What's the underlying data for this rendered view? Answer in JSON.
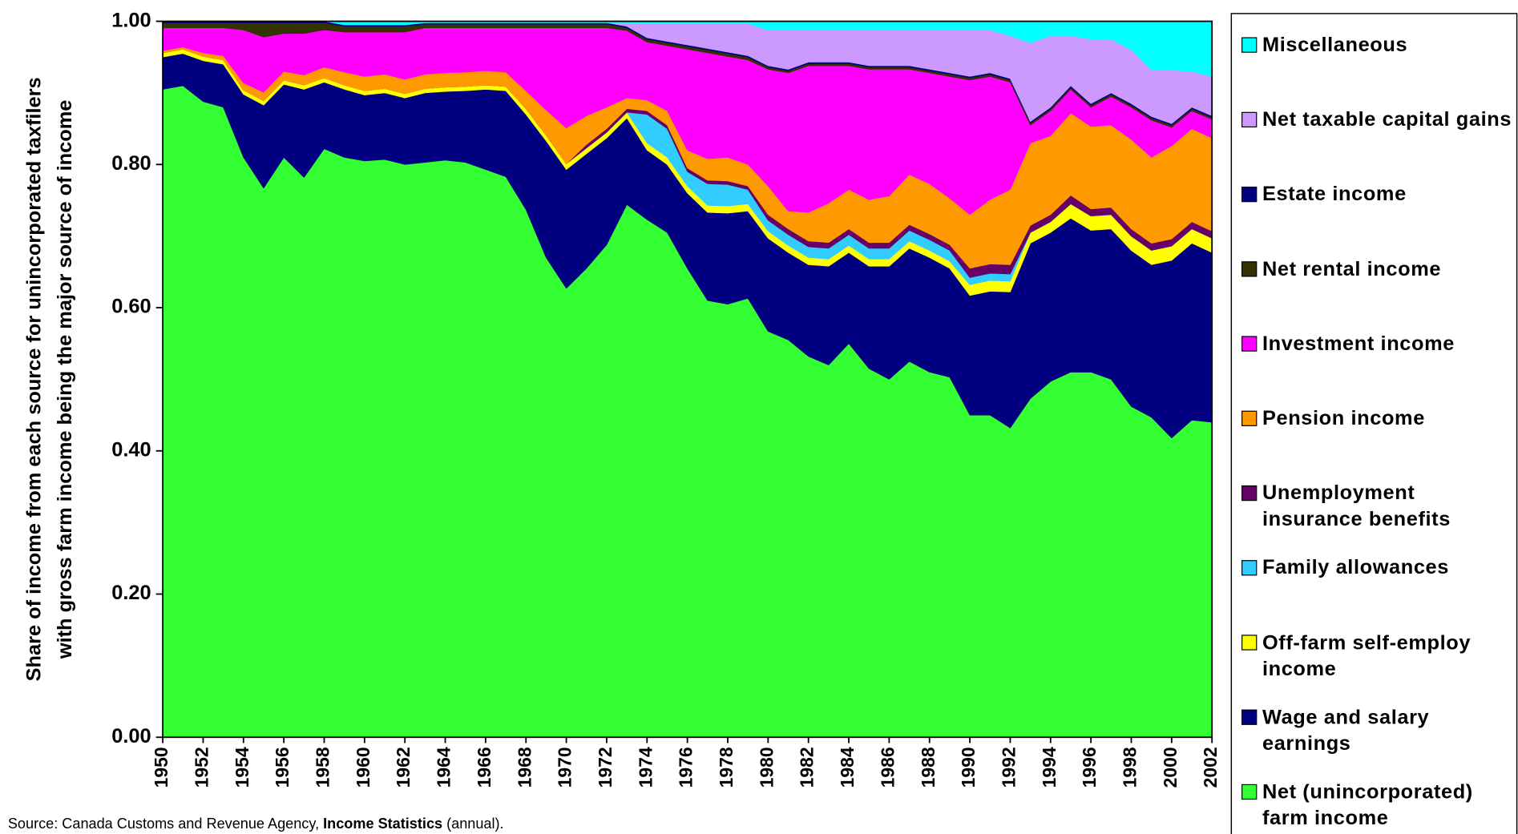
{
  "chart_data": {
    "type": "stacked_area",
    "ylabel": [
      "Share of income from each source for unincorporated taxfilers",
      "with gross farm income being the major source of income"
    ],
    "source_parts": [
      "Source:  Canada Customs and Revenue Agency, ",
      "Income Statistics",
      " (annual)."
    ],
    "x": [
      1950,
      1951,
      1952,
      1953,
      1954,
      1955,
      1956,
      1957,
      1958,
      1959,
      1960,
      1961,
      1962,
      1963,
      1964,
      1965,
      1966,
      1967,
      1968,
      1969,
      1970,
      1971,
      1972,
      1973,
      1974,
      1975,
      1976,
      1977,
      1978,
      1979,
      1980,
      1981,
      1982,
      1983,
      1984,
      1985,
      1986,
      1987,
      1988,
      1989,
      1990,
      1991,
      1992,
      1993,
      1994,
      1995,
      1996,
      1997,
      1998,
      1999,
      2000,
      2001,
      2002
    ],
    "xlim": [
      1950,
      2002
    ],
    "xticks": [
      1950,
      1952,
      1954,
      1956,
      1958,
      1960,
      1962,
      1964,
      1966,
      1968,
      1970,
      1972,
      1974,
      1976,
      1978,
      1980,
      1982,
      1984,
      1986,
      1988,
      1990,
      1992,
      1994,
      1996,
      1998,
      2000,
      2002
    ],
    "ylim": [
      0,
      1
    ],
    "yticks": [
      {
        "value": 0,
        "label": "0.00"
      },
      {
        "value": 0.2,
        "label": "0.20"
      },
      {
        "value": 0.4,
        "label": "0.40"
      },
      {
        "value": 0.6,
        "label": "0.60"
      },
      {
        "value": 0.8,
        "label": "0.80"
      },
      {
        "value": 1,
        "label": "1.00"
      }
    ],
    "legend": "right",
    "series": [
      {
        "name": "Net (unincorporated) farm income",
        "color": "#33ff33",
        "values": [
          0.905,
          0.91,
          0.888,
          0.88,
          0.81,
          0.767,
          0.81,
          0.782,
          0.822,
          0.81,
          0.805,
          0.807,
          0.8,
          0.803,
          0.806,
          0.803,
          0.793,
          0.783,
          0.737,
          0.67,
          0.627,
          0.655,
          0.688,
          0.744,
          0.723,
          0.705,
          0.655,
          0.61,
          0.605,
          0.613,
          0.567,
          0.555,
          0.532,
          0.52,
          0.55,
          0.515,
          0.5,
          0.525,
          0.51,
          0.503,
          0.45,
          0.45,
          0.432,
          0.473,
          0.497,
          0.51,
          0.51,
          0.5,
          0.462,
          0.447,
          0.418,
          0.443,
          0.44
        ]
      },
      {
        "name": "Wage and salary earnings",
        "color": "#000080",
        "values": [
          0.045,
          0.045,
          0.057,
          0.06,
          0.088,
          0.116,
          0.102,
          0.123,
          0.093,
          0.095,
          0.092,
          0.093,
          0.093,
          0.097,
          0.096,
          0.1,
          0.112,
          0.12,
          0.133,
          0.163,
          0.166,
          0.16,
          0.149,
          0.121,
          0.097,
          0.095,
          0.105,
          0.123,
          0.127,
          0.122,
          0.13,
          0.122,
          0.128,
          0.138,
          0.127,
          0.143,
          0.158,
          0.158,
          0.16,
          0.152,
          0.167,
          0.173,
          0.19,
          0.217,
          0.208,
          0.215,
          0.198,
          0.21,
          0.218,
          0.213,
          0.248,
          0.247,
          0.237
        ]
      },
      {
        "name": "Off-farm self-employ income",
        "color": "#ffff00",
        "values": [
          0.006,
          0.006,
          0.006,
          0.006,
          0.006,
          0.006,
          0.006,
          0.006,
          0.006,
          0.006,
          0.006,
          0.006,
          0.006,
          0.006,
          0.006,
          0.006,
          0.006,
          0.006,
          0.008,
          0.008,
          0.008,
          0.008,
          0.008,
          0.008,
          0.01,
          0.01,
          0.01,
          0.01,
          0.01,
          0.01,
          0.01,
          0.01,
          0.01,
          0.01,
          0.01,
          0.01,
          0.01,
          0.01,
          0.01,
          0.01,
          0.015,
          0.015,
          0.015,
          0.015,
          0.015,
          0.02,
          0.02,
          0.02,
          0.02,
          0.02,
          0.02,
          0.02,
          0.02
        ]
      },
      {
        "name": "Family allowances",
        "color": "#33ccff",
        "values": [
          0,
          0,
          0,
          0,
          0,
          0,
          0,
          0,
          0,
          0,
          0,
          0,
          0,
          0,
          0,
          0,
          0,
          0,
          0,
          0,
          0,
          0,
          0,
          0,
          0.04,
          0.04,
          0.02,
          0.03,
          0.03,
          0.02,
          0.015,
          0.015,
          0.015,
          0.015,
          0.015,
          0.015,
          0.015,
          0.015,
          0.015,
          0.015,
          0.01,
          0.01,
          0.01,
          0,
          0,
          0,
          0,
          0,
          0,
          0,
          0,
          0,
          0
        ]
      },
      {
        "name": "Unemployment insurance benefits",
        "color": "#660066",
        "values": [
          0,
          0,
          0,
          0,
          0,
          0,
          0,
          0,
          0,
          0,
          0,
          0,
          0,
          0,
          0,
          0,
          0,
          0,
          0,
          0,
          0,
          0.005,
          0.005,
          0.005,
          0.005,
          0.005,
          0.005,
          0.005,
          0.005,
          0.005,
          0.008,
          0.008,
          0.008,
          0.008,
          0.008,
          0.008,
          0.008,
          0.008,
          0.008,
          0.008,
          0.013,
          0.013,
          0.013,
          0.01,
          0.01,
          0.012,
          0.01,
          0.01,
          0.01,
          0.01,
          0.01,
          0.01,
          0.01
        ]
      },
      {
        "name": "Pension income",
        "color": "#ff9900",
        "values": [
          0.003,
          0.003,
          0.005,
          0.006,
          0.01,
          0.012,
          0.012,
          0.014,
          0.015,
          0.018,
          0.02,
          0.02,
          0.02,
          0.02,
          0.02,
          0.02,
          0.02,
          0.02,
          0.025,
          0.035,
          0.05,
          0.04,
          0.03,
          0.015,
          0.015,
          0.02,
          0.025,
          0.03,
          0.033,
          0.03,
          0.04,
          0.025,
          0.04,
          0.055,
          0.055,
          0.06,
          0.065,
          0.07,
          0.07,
          0.065,
          0.075,
          0.09,
          0.105,
          0.115,
          0.11,
          0.115,
          0.115,
          0.115,
          0.125,
          0.12,
          0.13,
          0.13,
          0.13
        ]
      },
      {
        "name": "Investment income",
        "color": "#ff00ff",
        "values": [
          0.032,
          0.027,
          0.035,
          0.039,
          0.074,
          0.077,
          0.053,
          0.058,
          0.052,
          0.056,
          0.062,
          0.059,
          0.066,
          0.065,
          0.063,
          0.062,
          0.06,
          0.062,
          0.088,
          0.115,
          0.14,
          0.123,
          0.111,
          0.094,
          0.081,
          0.091,
          0.141,
          0.148,
          0.141,
          0.146,
          0.163,
          0.193,
          0.205,
          0.192,
          0.173,
          0.182,
          0.177,
          0.147,
          0.155,
          0.17,
          0.188,
          0.172,
          0.15,
          0.025,
          0.035,
          0.033,
          0.027,
          0.04,
          0.045,
          0.052,
          0.026,
          0.025,
          0.026
        ]
      },
      {
        "name": "Net rental income",
        "color": "#333300",
        "values": [
          0.007,
          0.007,
          0.007,
          0.007,
          0.01,
          0.02,
          0.015,
          0.015,
          0.01,
          0.008,
          0.008,
          0.008,
          0.008,
          0.005,
          0.005,
          0.005,
          0.005,
          0.005,
          0.005,
          0.005,
          0.005,
          0.005,
          0.005,
          0.004,
          0.004,
          0.004,
          0.004,
          0.004,
          0.004,
          0.004,
          0.003,
          0.003,
          0.003,
          0.003,
          0.003,
          0.003,
          0.003,
          0.003,
          0.003,
          0.003,
          0.003,
          0.003,
          0.003,
          0.003,
          0.003,
          0.003,
          0.003,
          0.003,
          0.003,
          0.003,
          0.003,
          0.003,
          0.003
        ]
      },
      {
        "name": "Estate income",
        "color": "#000080",
        "values": [
          0.002,
          0.002,
          0.002,
          0.002,
          0.002,
          0.002,
          0.002,
          0.002,
          0.002,
          0.002,
          0.002,
          0.002,
          0.002,
          0.002,
          0.002,
          0.002,
          0.002,
          0.002,
          0.002,
          0.002,
          0.002,
          0.002,
          0.002,
          0.002,
          0.002,
          0.002,
          0.002,
          0.002,
          0.002,
          0.002,
          0.002,
          0.002,
          0.002,
          0.002,
          0.002,
          0.002,
          0.002,
          0.002,
          0.002,
          0.002,
          0.002,
          0.002,
          0.002,
          0.002,
          0.002,
          0.002,
          0.002,
          0.002,
          0.002,
          0.002,
          0.002,
          0.002,
          0.002
        ]
      },
      {
        "name": "Net taxable capital gains",
        "color": "#cc99ff",
        "values": [
          0,
          0,
          0,
          0,
          0,
          0,
          0,
          0,
          0,
          0,
          0,
          0,
          0,
          0,
          0,
          0,
          0,
          0,
          0,
          0,
          0,
          0,
          0,
          0.005,
          0.02,
          0.025,
          0.03,
          0.035,
          0.04,
          0.045,
          0.05,
          0.055,
          0.045,
          0.045,
          0.045,
          0.05,
          0.05,
          0.05,
          0.055,
          0.06,
          0.065,
          0.06,
          0.06,
          0.11,
          0.1,
          0.07,
          0.09,
          0.075,
          0.075,
          0.065,
          0.075,
          0.05,
          0.055
        ]
      },
      {
        "name": "Miscellaneous",
        "color": "#00ffff",
        "values": [
          0,
          0,
          0,
          0,
          0,
          0,
          0,
          0,
          0,
          0.005,
          0.005,
          0.005,
          0.005,
          0.002,
          0.002,
          0.002,
          0.002,
          0.002,
          0.002,
          0.002,
          0.002,
          0.002,
          0.002,
          0.002,
          0.003,
          0.003,
          0.003,
          0.003,
          0.003,
          0.003,
          0.012,
          0.012,
          0.012,
          0.012,
          0.012,
          0.012,
          0.012,
          0.012,
          0.012,
          0.012,
          0.012,
          0.012,
          0.02,
          0.03,
          0.02,
          0.02,
          0.025,
          0.025,
          0.04,
          0.068,
          0.068,
          0.07,
          0.077
        ]
      }
    ]
  }
}
